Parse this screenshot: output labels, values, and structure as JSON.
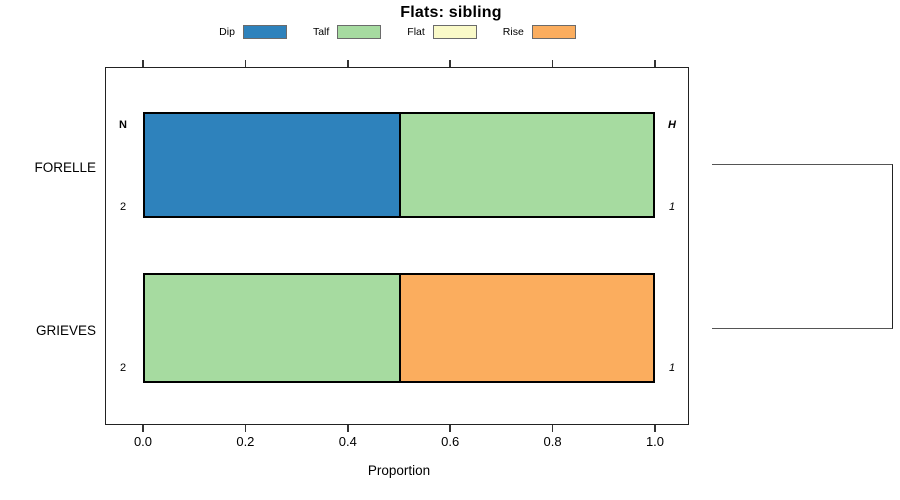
{
  "chart_data": {
    "type": "bar",
    "variant": "horizontal-stacked-proportion",
    "title": "Flats: sibling",
    "xlabel": "Proportion",
    "xlim": [
      0,
      1
    ],
    "grid": false,
    "legend_position": "top",
    "x_ticks": [
      {
        "label": "0.0",
        "value": 0.0
      },
      {
        "label": "0.2",
        "value": 0.2
      },
      {
        "label": "0.4",
        "value": 0.4
      },
      {
        "label": "0.6",
        "value": 0.6
      },
      {
        "label": "0.8",
        "value": 0.8
      },
      {
        "label": "1.0",
        "value": 1.0
      }
    ],
    "legend": [
      {
        "label": "Dip",
        "color": "#2E82BC"
      },
      {
        "label": "Talf",
        "color": "#A6DBA0"
      },
      {
        "label": "Flat",
        "color": "#FAFAC8"
      },
      {
        "label": "Rise",
        "color": "#FBAD5E"
      }
    ],
    "categories": [
      "FORELLE",
      "GRIEVES"
    ],
    "rows": [
      {
        "category": "FORELLE",
        "left_header": "N",
        "left_count": "2",
        "right_header": "H",
        "right_count": "1",
        "segments": [
          {
            "series": "Dip",
            "value": 0.5
          },
          {
            "series": "Talf",
            "value": 0.5
          },
          {
            "series": "Flat",
            "value": 0
          },
          {
            "series": "Rise",
            "value": 0
          }
        ]
      },
      {
        "category": "GRIEVES",
        "left_header": "",
        "left_count": "2",
        "right_header": "",
        "right_count": "1",
        "segments": [
          {
            "series": "Dip",
            "value": 0
          },
          {
            "series": "Talf",
            "value": 0.5
          },
          {
            "series": "Flat",
            "value": 0
          },
          {
            "series": "Rise",
            "value": 0.5
          }
        ]
      }
    ],
    "linkage": {
      "connects": [
        "FORELLE",
        "GRIEVES"
      ],
      "side": "right",
      "shape": "bracket"
    }
  }
}
